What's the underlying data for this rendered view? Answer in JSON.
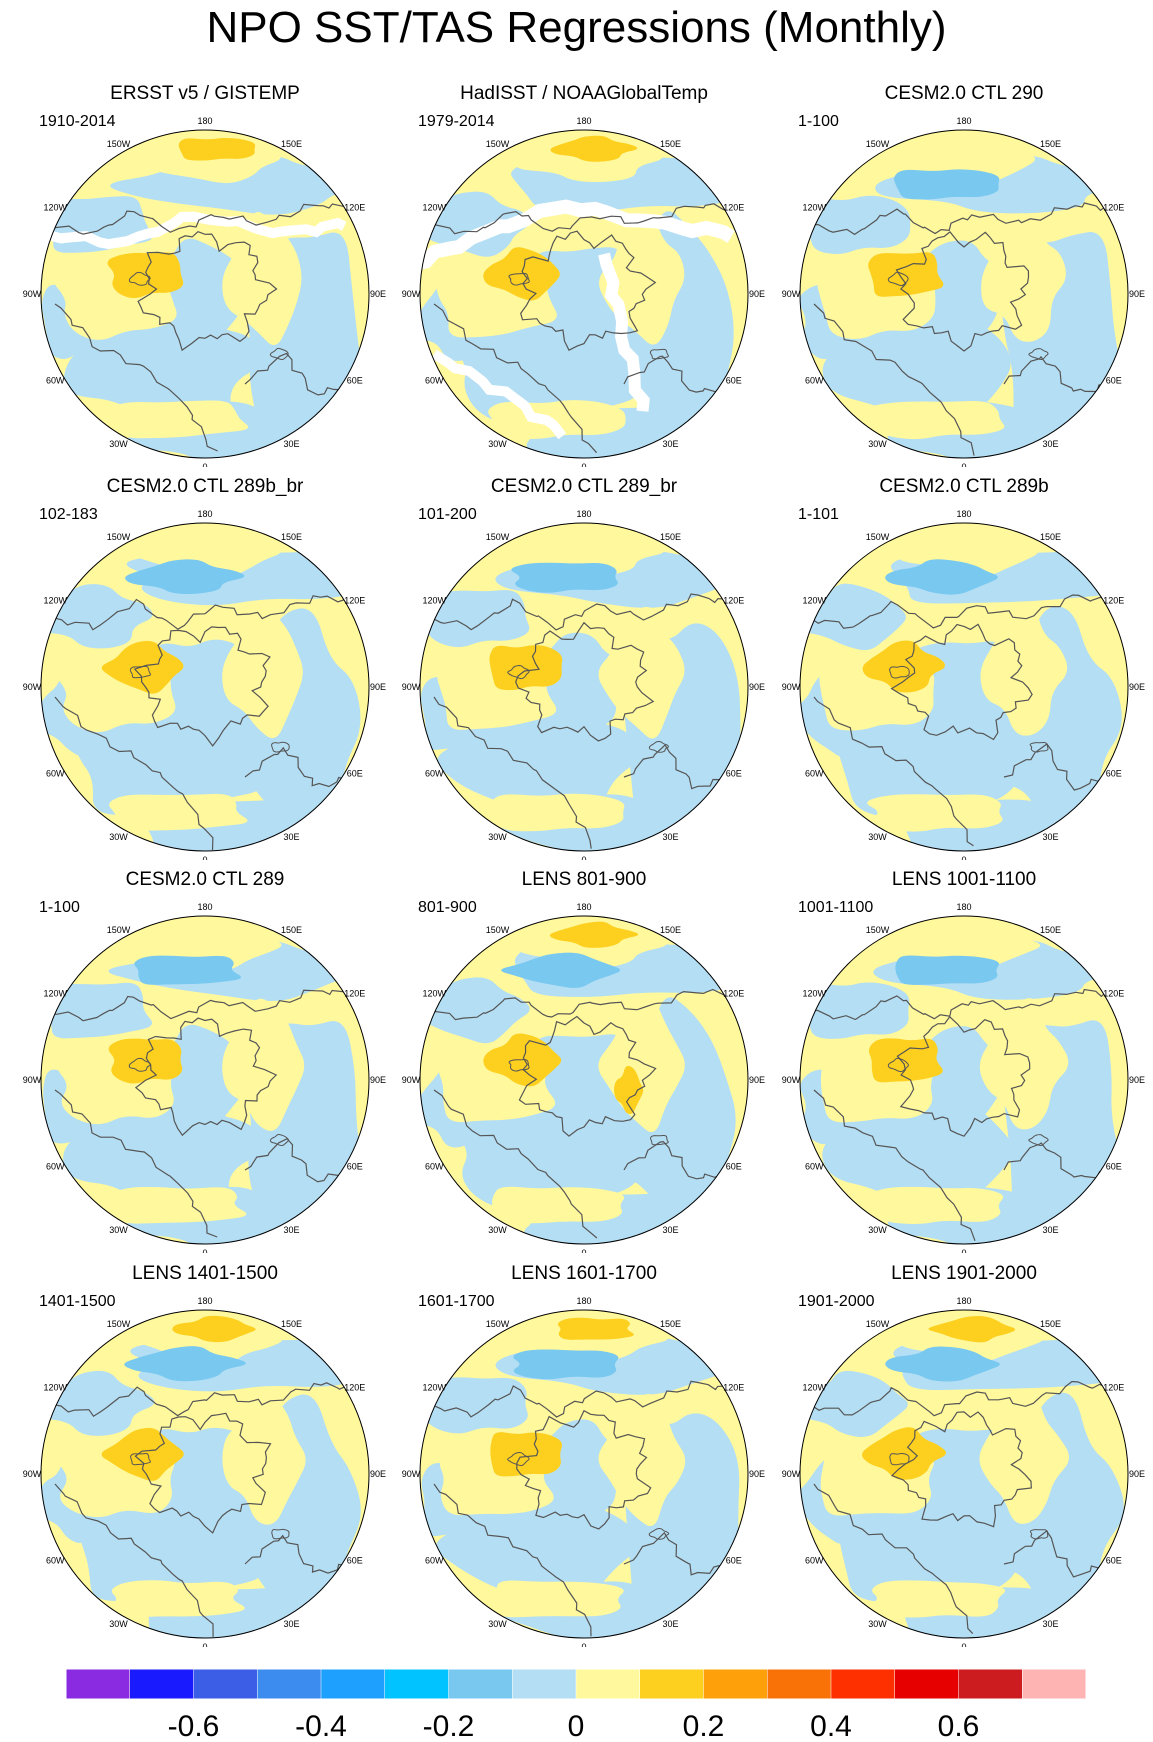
{
  "title": "NPO SST/TAS Regressions (Monthly)",
  "longitude_labels": [
    "180",
    "150E",
    "120E",
    "90E",
    "60E",
    "30E",
    "0",
    "30W",
    "60W",
    "90W",
    "120W",
    "150W"
  ],
  "colorbar": {
    "colors": [
      "#8a2be2",
      "#1a1aff",
      "#3c5ee6",
      "#3c8cf0",
      "#1ea0ff",
      "#00c3ff",
      "#78c8f0",
      "#b4def4",
      "#fff89c",
      "#fdd020",
      "#fda00a",
      "#f87208",
      "#fe3000",
      "#e60000",
      "#cc1c20",
      "#ffb4b4"
    ],
    "labels": [
      "-0.6",
      "-0.4",
      "-0.2",
      "0",
      "0.2",
      "0.4",
      "0.6"
    ],
    "label_values": [
      -0.6,
      -0.4,
      -0.2,
      0,
      0.2,
      0.4,
      0.6
    ]
  },
  "panels": [
    {
      "title": "ERSST v5 / GISTEMP",
      "period": "1910-2014",
      "missing": "coast"
    },
    {
      "title": "HadISST / NOAAGlobalTemp",
      "period": "1979-2014",
      "missing": "patchy"
    },
    {
      "title": "CESM2.0 CTL 290",
      "period": "1-100",
      "missing": "none"
    },
    {
      "title": "CESM2.0 CTL 289b_br",
      "period": "102-183",
      "missing": "none"
    },
    {
      "title": "CESM2.0 CTL 289_br",
      "period": "101-200",
      "missing": "none"
    },
    {
      "title": "CESM2.0 CTL 289b",
      "period": "1-101",
      "missing": "none"
    },
    {
      "title": "CESM2.0 CTL 289",
      "period": "1-100",
      "missing": "none"
    },
    {
      "title": "LENS 801-900",
      "period": "801-900",
      "missing": "none"
    },
    {
      "title": "LENS 1001-1100",
      "period": "1001-1100",
      "missing": "none"
    },
    {
      "title": "LENS 1401-1500",
      "period": "1401-1500",
      "missing": "none"
    },
    {
      "title": "LENS 1601-1700",
      "period": "1601-1700",
      "missing": "none"
    },
    {
      "title": "LENS 1901-2000",
      "period": "1901-2000",
      "missing": "none"
    }
  ]
}
